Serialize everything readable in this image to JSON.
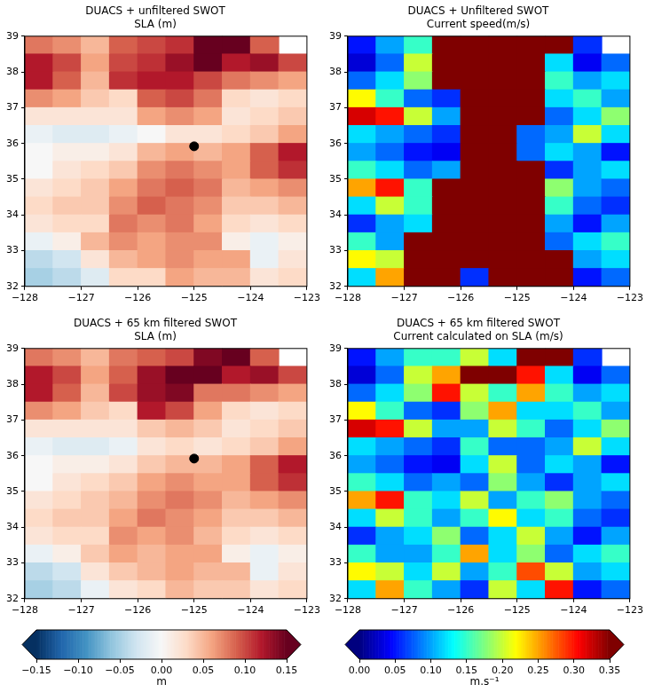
{
  "chart_data": [
    {
      "type": "heatmap",
      "title": [
        "DUACS + unfiltered SWOT",
        "SLA (m)"
      ],
      "color": "RdBu_r",
      "x": [
        -127.75,
        -127.25,
        -126.75,
        -126.25,
        -125.75,
        -125.25,
        -124.75,
        -124.25,
        -123.75,
        -123.25
      ],
      "y": [
        38.75,
        38.25,
        37.75,
        37.25,
        36.75,
        36.25,
        35.75,
        35.25,
        34.75,
        34.25,
        33.75,
        33.25,
        32.75,
        32.25
      ],
      "cells": [
        [
          0.08,
          0.07,
          0.05,
          0.09,
          0.1,
          0.11,
          0.15,
          0.15,
          0.09,
          null
        ],
        [
          0.12,
          0.1,
          0.06,
          0.1,
          0.11,
          0.13,
          0.15,
          0.12,
          0.13,
          0.1
        ],
        [
          0.12,
          0.09,
          0.05,
          0.11,
          0.12,
          0.12,
          0.1,
          0.08,
          0.07,
          0.06
        ],
        [
          0.07,
          0.06,
          0.04,
          0.03,
          0.09,
          0.1,
          0.08,
          0.03,
          0.02,
          0.03
        ],
        [
          0.02,
          0.02,
          0.02,
          0.02,
          0.06,
          0.07,
          0.06,
          0.02,
          0.03,
          0.04
        ],
        [
          -0.01,
          -0.02,
          -0.02,
          -0.01,
          0.0,
          0.02,
          0.02,
          0.03,
          0.04,
          0.06
        ],
        [
          0.0,
          0.01,
          0.01,
          0.02,
          0.05,
          0.06,
          0.05,
          0.06,
          0.09,
          0.12
        ],
        [
          0.0,
          0.02,
          0.03,
          0.04,
          0.07,
          0.08,
          0.07,
          0.06,
          0.09,
          0.11
        ],
        [
          0.02,
          0.03,
          0.04,
          0.06,
          0.08,
          0.09,
          0.08,
          0.05,
          0.06,
          0.07
        ],
        [
          0.03,
          0.04,
          0.04,
          0.07,
          0.09,
          0.08,
          0.07,
          0.04,
          0.04,
          0.05
        ],
        [
          0.02,
          0.03,
          0.03,
          0.08,
          0.07,
          0.08,
          0.06,
          0.03,
          0.02,
          0.03
        ],
        [
          -0.01,
          0.01,
          0.05,
          0.07,
          0.06,
          0.07,
          0.07,
          0.01,
          -0.01,
          0.01
        ],
        [
          -0.04,
          -0.03,
          0.02,
          0.05,
          0.06,
          0.07,
          0.06,
          0.06,
          -0.01,
          0.02
        ],
        [
          -0.05,
          -0.04,
          -0.02,
          0.03,
          0.03,
          0.06,
          0.05,
          0.05,
          0.02,
          0.03
        ]
      ],
      "xlim": [
        -128,
        -123
      ],
      "xticks": [
        {
          "value": -128,
          "label": "−128"
        },
        {
          "value": -127,
          "label": "−127"
        },
        {
          "value": -126,
          "label": "−126"
        },
        {
          "value": -125,
          "label": "−125"
        },
        {
          "value": -124,
          "label": "−124"
        },
        {
          "value": -123,
          "label": "−123"
        }
      ],
      "ylim": [
        32,
        39
      ],
      "yticks": [
        32,
        33,
        34,
        35,
        36,
        37,
        38,
        39
      ],
      "grid": false,
      "series": [
        {
          "type": "scatter",
          "color": "#000000",
          "marker": "circle",
          "values": [
            {
              "x": -125,
              "y": 35.92
            }
          ]
        }
      ]
    },
    {
      "type": "heatmap",
      "title": [
        "DUACS + Unfiltered SWOT",
        "Current speed(m/s)"
      ],
      "color": "jet",
      "x": [
        -127.75,
        -127.25,
        -126.75,
        -126.25,
        -125.75,
        -125.25,
        -124.75,
        -124.25,
        -123.75,
        -123.25
      ],
      "y": [
        38.75,
        38.25,
        37.75,
        37.25,
        36.75,
        36.25,
        35.75,
        35.25,
        34.75,
        34.25,
        33.75,
        33.25,
        32.75,
        32.25
      ],
      "cells": [
        [
          0.05,
          0.1,
          0.15,
          0.45,
          0.5,
          0.4,
          0.55,
          0.45,
          0.06,
          null
        ],
        [
          0.03,
          0.08,
          0.2,
          0.5,
          0.45,
          0.55,
          0.4,
          0.12,
          0.04,
          0.08
        ],
        [
          0.08,
          0.12,
          0.18,
          0.4,
          0.55,
          0.45,
          0.5,
          0.15,
          0.1,
          0.12
        ],
        [
          0.22,
          0.15,
          0.08,
          0.06,
          0.45,
          0.5,
          0.45,
          0.12,
          0.15,
          0.1
        ],
        [
          0.32,
          0.3,
          0.2,
          0.1,
          0.5,
          0.4,
          0.55,
          0.08,
          0.12,
          0.18
        ],
        [
          0.12,
          0.1,
          0.08,
          0.06,
          0.45,
          0.5,
          0.08,
          0.1,
          0.2,
          0.12
        ],
        [
          0.1,
          0.08,
          0.05,
          0.04,
          0.55,
          0.45,
          0.08,
          0.12,
          0.1,
          0.05
        ],
        [
          0.15,
          0.12,
          0.08,
          0.1,
          0.4,
          0.5,
          0.45,
          0.06,
          0.1,
          0.12
        ],
        [
          0.25,
          0.3,
          0.15,
          0.5,
          0.45,
          0.55,
          0.4,
          0.18,
          0.1,
          0.08
        ],
        [
          0.12,
          0.2,
          0.15,
          0.45,
          0.5,
          0.4,
          0.5,
          0.15,
          0.08,
          0.06
        ],
        [
          0.06,
          0.1,
          0.12,
          0.55,
          0.45,
          0.5,
          0.45,
          0.1,
          0.05,
          0.1
        ],
        [
          0.15,
          0.1,
          0.45,
          0.5,
          0.4,
          0.55,
          0.45,
          0.08,
          0.12,
          0.15
        ],
        [
          0.22,
          0.2,
          0.5,
          0.45,
          0.55,
          0.4,
          0.5,
          0.45,
          0.1,
          0.12
        ],
        [
          0.12,
          0.25,
          0.45,
          0.5,
          0.06,
          0.45,
          0.55,
          0.4,
          0.05,
          0.08
        ]
      ],
      "xlim": [
        -128,
        -123
      ],
      "xticks": [
        {
          "value": -128,
          "label": "−128"
        },
        {
          "value": -127,
          "label": "−127"
        },
        {
          "value": -126,
          "label": "−126"
        },
        {
          "value": -125,
          "label": "−125"
        },
        {
          "value": -124,
          "label": "−124"
        },
        {
          "value": -123,
          "label": "−123"
        }
      ],
      "ylim": [
        32,
        39
      ],
      "yticks": [
        32,
        33,
        34,
        35,
        36,
        37,
        38,
        39
      ],
      "grid": false
    },
    {
      "type": "heatmap",
      "title": [
        "DUACS + 65 km filtered SWOT",
        "SLA (m)"
      ],
      "color": "RdBu_r",
      "x": [
        -127.75,
        -127.25,
        -126.75,
        -126.25,
        -125.75,
        -125.25,
        -124.75,
        -124.25,
        -123.75,
        -123.25
      ],
      "y": [
        38.75,
        38.25,
        37.75,
        37.25,
        36.75,
        36.25,
        35.75,
        35.25,
        34.75,
        34.25,
        33.75,
        33.25,
        32.75,
        32.25
      ],
      "cells": [
        [
          0.08,
          0.07,
          0.05,
          0.08,
          0.09,
          0.1,
          0.14,
          0.15,
          0.09,
          null
        ],
        [
          0.12,
          0.1,
          0.06,
          0.09,
          0.13,
          0.15,
          0.15,
          0.12,
          0.13,
          0.1
        ],
        [
          0.12,
          0.09,
          0.05,
          0.1,
          0.13,
          0.14,
          0.08,
          0.08,
          0.07,
          0.06
        ],
        [
          0.07,
          0.06,
          0.04,
          0.03,
          0.12,
          0.1,
          0.06,
          0.03,
          0.02,
          0.03
        ],
        [
          0.02,
          0.02,
          0.02,
          0.02,
          0.04,
          0.05,
          0.04,
          0.02,
          0.03,
          0.04
        ],
        [
          -0.01,
          -0.02,
          -0.02,
          -0.01,
          0.02,
          0.03,
          0.02,
          0.03,
          0.04,
          0.06
        ],
        [
          0.0,
          0.01,
          0.01,
          0.02,
          0.04,
          0.05,
          0.05,
          0.06,
          0.09,
          0.12
        ],
        [
          0.0,
          0.02,
          0.03,
          0.04,
          0.06,
          0.07,
          0.06,
          0.06,
          0.09,
          0.11
        ],
        [
          0.02,
          0.03,
          0.04,
          0.05,
          0.07,
          0.08,
          0.07,
          0.05,
          0.06,
          0.07
        ],
        [
          0.03,
          0.04,
          0.04,
          0.06,
          0.08,
          0.07,
          0.06,
          0.04,
          0.04,
          0.05
        ],
        [
          0.02,
          0.03,
          0.03,
          0.07,
          0.06,
          0.07,
          0.05,
          0.03,
          0.02,
          0.03
        ],
        [
          -0.01,
          0.01,
          0.04,
          0.06,
          0.05,
          0.06,
          0.06,
          0.01,
          -0.01,
          0.01
        ],
        [
          -0.04,
          -0.03,
          0.02,
          0.04,
          0.05,
          0.06,
          0.05,
          0.05,
          -0.01,
          0.02
        ],
        [
          -0.05,
          -0.04,
          -0.01,
          0.02,
          0.03,
          0.05,
          0.04,
          0.04,
          0.02,
          0.03
        ]
      ],
      "xlim": [
        -128,
        -123
      ],
      "xticks": [
        {
          "value": -128,
          "label": "−128"
        },
        {
          "value": -127,
          "label": "−127"
        },
        {
          "value": -126,
          "label": "−126"
        },
        {
          "value": -125,
          "label": "−125"
        },
        {
          "value": -124,
          "label": "−124"
        },
        {
          "value": -123,
          "label": "−123"
        }
      ],
      "ylim": [
        32,
        39
      ],
      "yticks": [
        32,
        33,
        34,
        35,
        36,
        37,
        38,
        39
      ],
      "grid": false,
      "series": [
        {
          "type": "scatter",
          "color": "#000000",
          "marker": "circle",
          "values": [
            {
              "x": -125,
              "y": 35.92
            }
          ]
        }
      ]
    },
    {
      "type": "heatmap",
      "title": [
        "DUACS + 65 km filtered SWOT",
        "Current calculated on SLA (m/s)"
      ],
      "color": "jet",
      "x": [
        -127.75,
        -127.25,
        -126.75,
        -126.25,
        -125.75,
        -125.25,
        -124.75,
        -124.25,
        -123.75,
        -123.25
      ],
      "y": [
        38.75,
        38.25,
        37.75,
        37.25,
        36.75,
        36.25,
        35.75,
        35.25,
        34.75,
        34.25,
        33.75,
        33.25,
        32.75,
        32.25
      ],
      "cells": [
        [
          0.05,
          0.1,
          0.15,
          0.15,
          0.2,
          0.12,
          0.35,
          0.4,
          0.06,
          null
        ],
        [
          0.03,
          0.08,
          0.2,
          0.25,
          0.4,
          0.45,
          0.3,
          0.12,
          0.04,
          0.08
        ],
        [
          0.08,
          0.12,
          0.18,
          0.3,
          0.2,
          0.15,
          0.25,
          0.15,
          0.1,
          0.12
        ],
        [
          0.22,
          0.15,
          0.08,
          0.06,
          0.18,
          0.25,
          0.12,
          0.12,
          0.15,
          0.1
        ],
        [
          0.32,
          0.3,
          0.2,
          0.1,
          0.1,
          0.2,
          0.15,
          0.08,
          0.12,
          0.18
        ],
        [
          0.12,
          0.1,
          0.08,
          0.06,
          0.15,
          0.08,
          0.08,
          0.1,
          0.2,
          0.12
        ],
        [
          0.1,
          0.08,
          0.05,
          0.04,
          0.12,
          0.2,
          0.08,
          0.12,
          0.1,
          0.05
        ],
        [
          0.15,
          0.12,
          0.08,
          0.1,
          0.08,
          0.18,
          0.1,
          0.06,
          0.1,
          0.12
        ],
        [
          0.25,
          0.3,
          0.15,
          0.12,
          0.2,
          0.1,
          0.15,
          0.18,
          0.1,
          0.08
        ],
        [
          0.12,
          0.2,
          0.15,
          0.1,
          0.15,
          0.22,
          0.12,
          0.15,
          0.08,
          0.06
        ],
        [
          0.06,
          0.1,
          0.12,
          0.18,
          0.08,
          0.12,
          0.2,
          0.1,
          0.05,
          0.1
        ],
        [
          0.15,
          0.1,
          0.1,
          0.15,
          0.25,
          0.12,
          0.18,
          0.08,
          0.12,
          0.15
        ],
        [
          0.22,
          0.2,
          0.12,
          0.2,
          0.1,
          0.15,
          0.28,
          0.2,
          0.1,
          0.12
        ],
        [
          0.12,
          0.25,
          0.15,
          0.1,
          0.06,
          0.2,
          0.12,
          0.3,
          0.05,
          0.08
        ]
      ],
      "xlim": [
        -128,
        -123
      ],
      "xticks": [
        {
          "value": -128,
          "label": "−128"
        },
        {
          "value": -127,
          "label": "−127"
        },
        {
          "value": -126,
          "label": "−126"
        },
        {
          "value": -125,
          "label": "−125"
        },
        {
          "value": -124,
          "label": "−124"
        },
        {
          "value": -123,
          "label": "−123"
        }
      ],
      "ylim": [
        32,
        39
      ],
      "yticks": [
        32,
        33,
        34,
        35,
        36,
        37,
        38,
        39
      ],
      "grid": false
    },
    {
      "type": "colorbar",
      "color": "RdBu_r",
      "label": "m",
      "range": [
        -0.15,
        0.15
      ],
      "ticks": [
        {
          "value": -0.15,
          "label": "−0.15"
        },
        {
          "value": -0.1,
          "label": "−0.10"
        },
        {
          "value": -0.05,
          "label": "−0.05"
        },
        {
          "value": 0,
          "label": "0.00"
        },
        {
          "value": 0.05,
          "label": "0.05"
        },
        {
          "value": 0.1,
          "label": "0.10"
        },
        {
          "value": 0.15,
          "label": "0.15"
        }
      ]
    },
    {
      "type": "colorbar",
      "color": "jet",
      "label": "m.s⁻¹",
      "range": [
        0,
        0.35
      ],
      "ticks": [
        {
          "value": 0,
          "label": "0.00"
        },
        {
          "value": 0.05,
          "label": "0.05"
        },
        {
          "value": 0.1,
          "label": "0.10"
        },
        {
          "value": 0.15,
          "label": "0.15"
        },
        {
          "value": 0.2,
          "label": "0.20"
        },
        {
          "value": 0.25,
          "label": "0.25"
        },
        {
          "value": 0.3,
          "label": "0.30"
        },
        {
          "value": 0.35,
          "label": "0.35"
        }
      ]
    }
  ]
}
